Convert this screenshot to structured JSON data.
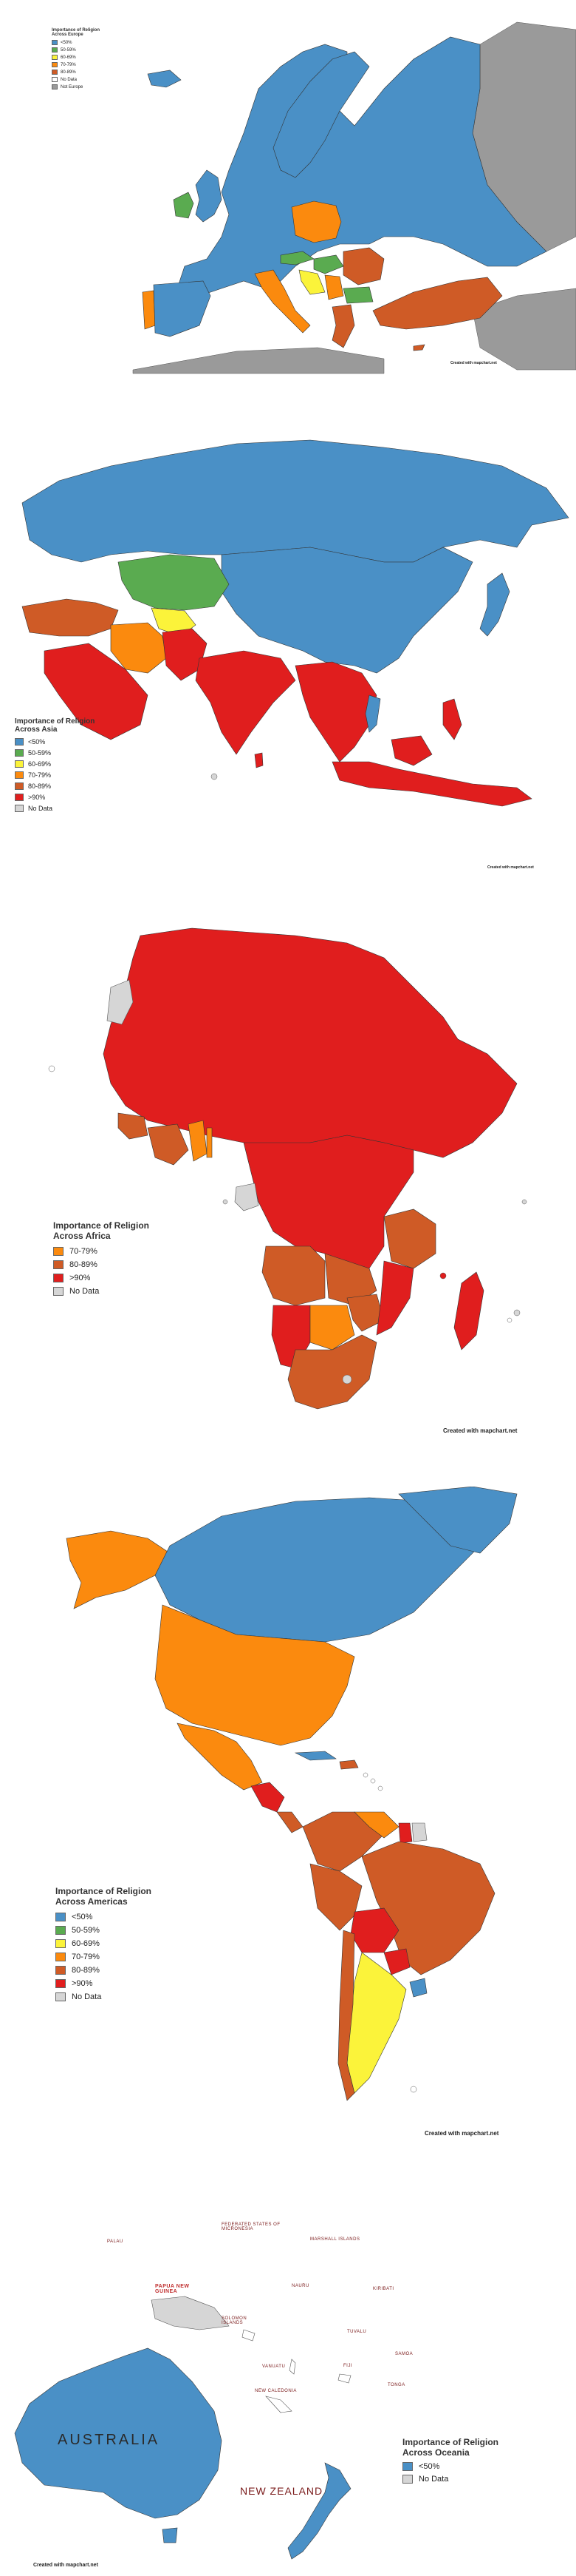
{
  "colors": {
    "lt50": "#4a90c6",
    "r50_59": "#5aab50",
    "r60_69": "#fbf33a",
    "r70_79": "#fb8a0e",
    "r80_89": "#cf5b26",
    "gt90": "#e01e1e",
    "no_data": "#d6d6d6",
    "not_europe": "#9a9a9a"
  },
  "europe": {
    "title_line1": "Importance of Religion",
    "title_line2": "Across Europe",
    "legend": [
      {
        "label": "<50%",
        "color": "#4a90c6"
      },
      {
        "label": "50-59%",
        "color": "#5aab50"
      },
      {
        "label": "60-69%",
        "color": "#fbf33a"
      },
      {
        "label": "70-79%",
        "color": "#fb8a0e"
      },
      {
        "label": "80-89%",
        "color": "#cf5b26"
      },
      {
        "label": "No Data",
        "color": "#ffffff"
      },
      {
        "label": "Not Europe",
        "color": "#9a9a9a"
      }
    ],
    "credit": "Created with mapchart.net"
  },
  "asia": {
    "title_line1": "Importance of Religion",
    "title_line2": "Across Asia",
    "legend": [
      {
        "label": "<50%",
        "color": "#4a90c6"
      },
      {
        "label": "50-59%",
        "color": "#5aab50"
      },
      {
        "label": "60-69%",
        "color": "#fbf33a"
      },
      {
        "label": "70-79%",
        "color": "#fb8a0e"
      },
      {
        "label": "80-89%",
        "color": "#cf5b26"
      },
      {
        "label": ">90%",
        "color": "#e01e1e"
      },
      {
        "label": "No Data",
        "color": "#d6d6d6"
      }
    ],
    "credit": "Created with mapchart.net"
  },
  "africa": {
    "title_line1": "Importance of Religion",
    "title_line2": "Across Africa",
    "legend": [
      {
        "label": "70-79%",
        "color": "#fb8a0e"
      },
      {
        "label": "80-89%",
        "color": "#cf5b26"
      },
      {
        "label": ">90%",
        "color": "#e01e1e"
      },
      {
        "label": "No Data",
        "color": "#d6d6d6"
      }
    ],
    "credit": "Created with mapchart.net"
  },
  "americas": {
    "title_line1": "Importance of Religion",
    "title_line2": "Across Americas",
    "legend": [
      {
        "label": "<50%",
        "color": "#4a90c6"
      },
      {
        "label": "50-59%",
        "color": "#5aab50"
      },
      {
        "label": "60-69%",
        "color": "#fbf33a"
      },
      {
        "label": "70-79%",
        "color": "#fb8a0e"
      },
      {
        "label": "80-89%",
        "color": "#cf5b26"
      },
      {
        "label": ">90%",
        "color": "#e01e1e"
      },
      {
        "label": "No Data",
        "color": "#d6d6d6"
      }
    ],
    "credit": "Created with mapchart.net"
  },
  "oceania": {
    "title_line1": "Importance of Religion",
    "title_line2": "Across Oceania",
    "legend": [
      {
        "label": "<50%",
        "color": "#4a90c6"
      },
      {
        "label": "No Data",
        "color": "#d6d6d6"
      }
    ],
    "labels": {
      "australia": "AUSTRALIA",
      "new_zealand": "NEW ZEALAND",
      "papua": "PAPUA NEW GUINEA",
      "new_caledonia": "NEW CALEDONIA",
      "palau": "PALAU",
      "vanuatu": "VANUATU",
      "fiji": "FIJI",
      "samoa": "SAMOA",
      "tonga": "TONGA",
      "kiribati": "KIRIBATI",
      "tuvalu": "TUVALU",
      "nauru": "NAURU",
      "solomon": "SOLOMON ISLANDS",
      "marshall": "MARSHALL ISLANDS",
      "micronesia": "FEDERATED STATES OF MICRONESIA"
    },
    "credit": "Created with mapchart.net"
  }
}
